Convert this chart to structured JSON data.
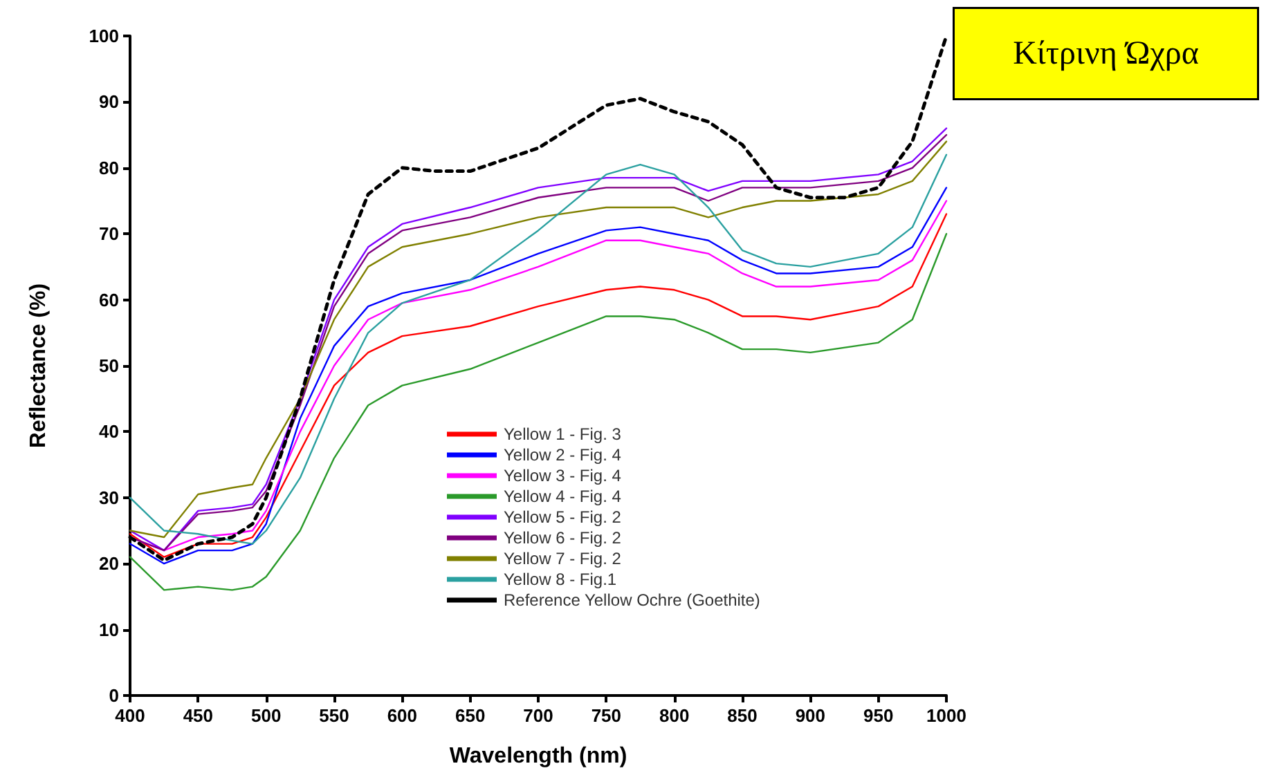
{
  "chart_data": {
    "type": "line",
    "xlabel": "Wavelength (nm)",
    "ylabel": "Reflectance (%)",
    "annotations": [
      "Κίτρινη Ώχρα"
    ],
    "x": [
      400,
      425,
      450,
      475,
      490,
      500,
      525,
      550,
      575,
      600,
      650,
      700,
      750,
      775,
      800,
      825,
      850,
      875,
      900,
      950,
      975,
      1000
    ],
    "xlim": [
      400,
      1000
    ],
    "xticks": [
      400,
      450,
      500,
      550,
      600,
      650,
      700,
      750,
      800,
      850,
      900,
      950,
      1000
    ],
    "ylim": [
      0,
      100
    ],
    "yticks": [
      0,
      10,
      20,
      30,
      40,
      50,
      60,
      70,
      80,
      90,
      100
    ],
    "grid": false,
    "legend": "bottom",
    "marker": "none",
    "line_style": "solid",
    "series": [
      {
        "name": "Yellow 1 - Fig. 3",
        "color": "#ff0000",
        "values": [
          24.5,
          21,
          23,
          23,
          24,
          27,
          37,
          47,
          52,
          54.5,
          56,
          59,
          61.5,
          62,
          61.5,
          60,
          57.5,
          57.5,
          57,
          59,
          62,
          73
        ]
      },
      {
        "name": "Yellow 2 - Fig. 4",
        "color": "#0000ff",
        "values": [
          23,
          20,
          22,
          22,
          23,
          26,
          42,
          53,
          59,
          61,
          63,
          67,
          70.5,
          71,
          70,
          69,
          66,
          64,
          64,
          65,
          68,
          77
        ]
      },
      {
        "name": "Yellow 3 - Fig. 4",
        "color": "#ff00ff",
        "values": [
          24,
          22,
          24,
          24.5,
          25,
          28,
          40,
          50,
          57,
          59.5,
          61.5,
          65,
          69,
          69,
          68,
          67,
          64,
          62,
          62,
          63,
          66,
          75
        ]
      },
      {
        "name": "Yellow 4 - Fig. 4",
        "color": "#2a9a2a",
        "values": [
          21,
          16,
          16.5,
          16,
          16.5,
          18,
          25,
          36,
          44,
          47,
          49.5,
          53.5,
          57.5,
          57.5,
          57,
          55,
          52.5,
          52.5,
          52,
          53.5,
          57,
          70
        ]
      },
      {
        "name": "Yellow 5 - Fig. 2",
        "color": "#8000ff",
        "values": [
          25,
          22,
          28,
          28.5,
          29,
          32,
          45,
          60,
          68,
          71.5,
          74,
          77,
          78.5,
          78.5,
          78.5,
          76.5,
          78,
          78,
          78,
          79,
          81,
          86
        ]
      },
      {
        "name": "Yellow 6 - Fig. 2",
        "color": "#800080",
        "values": [
          24,
          22,
          27.5,
          28,
          28.5,
          31,
          44,
          59,
          67,
          70.5,
          72.5,
          75.5,
          77,
          77,
          77,
          75,
          77,
          77,
          77,
          78,
          80,
          85
        ]
      },
      {
        "name": "Yellow 7 - Fig. 2",
        "color": "#808000",
        "values": [
          25,
          24,
          30.5,
          31.5,
          32,
          36,
          45,
          57,
          65,
          68,
          70,
          72.5,
          74,
          74,
          74,
          72.5,
          74,
          75,
          75,
          76,
          78,
          84
        ]
      },
      {
        "name": "Yellow 8 - Fig.1",
        "color": "#2aa0a0",
        "values": [
          30,
          25,
          24.5,
          23.5,
          23,
          25,
          33,
          45,
          55,
          59.5,
          63,
          70.5,
          79,
          80.5,
          79,
          74,
          67.5,
          65.5,
          65,
          67,
          71,
          82
        ]
      },
      {
        "name": "Reference Yellow Ochre (Goethite)",
        "color": "#000000",
        "line_style": "dashed",
        "x": [
          400,
          425,
          450,
          475,
          490,
          500,
          525,
          550,
          575,
          600,
          625,
          650,
          700,
          750,
          775,
          800,
          825,
          850,
          875,
          900,
          925,
          950,
          975,
          1000
        ],
        "values": [
          24,
          20.5,
          23,
          24,
          26,
          30,
          45,
          63,
          76,
          80,
          79.5,
          79.5,
          83,
          89.5,
          90.5,
          88.5,
          87,
          83.5,
          77,
          75.5,
          75.5,
          77,
          84,
          100
        ]
      }
    ]
  }
}
